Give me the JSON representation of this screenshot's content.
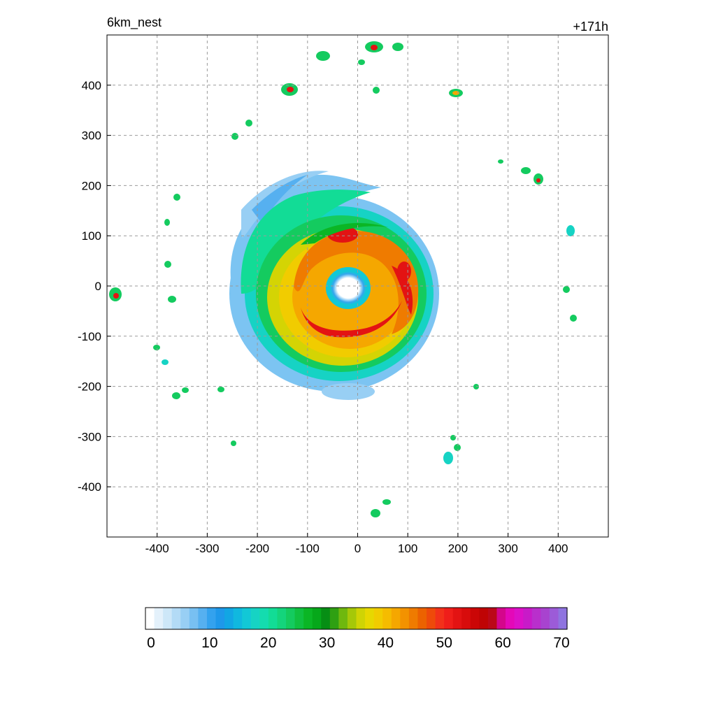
{
  "plot": {
    "left_label": "6km_nest",
    "right_label": "+171h"
  },
  "chart_data": {
    "type": "heatmap",
    "title": "",
    "xlabel": "",
    "ylabel": "",
    "xlim": [
      -500,
      500
    ],
    "ylim": [
      -500,
      500
    ],
    "xticks": [
      -400,
      -300,
      -200,
      -100,
      0,
      100,
      200,
      300,
      400
    ],
    "yticks": [
      400,
      300,
      200,
      100,
      0,
      -100,
      -200,
      -300,
      -400
    ],
    "grid": true,
    "colorbar": {
      "min": 0,
      "max": 70,
      "tick_values": [
        0,
        10,
        20,
        30,
        40,
        50,
        60,
        70
      ],
      "tick_labels": [
        "0",
        "10",
        "20",
        "30",
        "40",
        "50",
        "60",
        "70"
      ],
      "colors": [
        "#ffffff",
        "#e4f1fb",
        "#cde7f8",
        "#b3dbf6",
        "#98cff4",
        "#78c0f2",
        "#56b0f0",
        "#33a2ee",
        "#1e98ea",
        "#12a6e4",
        "#10b8df",
        "#12c8d6",
        "#16d3c4",
        "#14dcaf",
        "#12dc96",
        "#14d47c",
        "#14cb5f",
        "#10c040",
        "#0bb625",
        "#06a81a",
        "#068e14",
        "#2fa012",
        "#6fb80e",
        "#a5c808",
        "#cfd404",
        "#e7d800",
        "#f1cc00",
        "#f5bc00",
        "#f5a700",
        "#f39200",
        "#ef7b00",
        "#ec6200",
        "#ee4a0a",
        "#f2311a",
        "#ef1e1a",
        "#e31313",
        "#d80c0c",
        "#cb0606",
        "#bf0404",
        "#bb0818",
        "#d4068c",
        "#e408b8",
        "#dc10c8",
        "#c81ac8",
        "#b92fcc",
        "#a843cf",
        "#9c5bd8",
        "#8f74e0"
      ]
    }
  }
}
